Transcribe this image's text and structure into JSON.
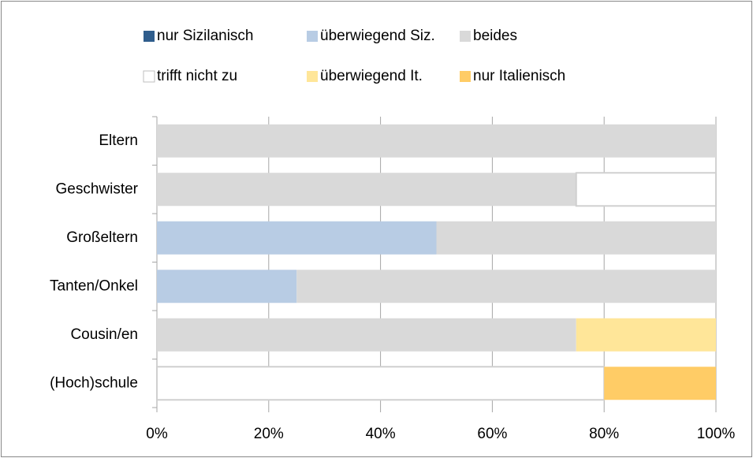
{
  "chart_data": {
    "type": "bar",
    "categories": [
      "Eltern",
      "Geschwister",
      "Großeltern",
      "Tanten/Onkel",
      "Cousin/en",
      "(Hoch)schule"
    ],
    "series": [
      {
        "name": "nur Sizilanisch",
        "color": "#2f5d8c",
        "values": [
          0,
          0,
          0,
          0,
          0,
          0
        ]
      },
      {
        "name": "überwiegend Siz.",
        "color": "#b8cce4",
        "values": [
          0,
          0,
          50,
          25,
          0,
          0
        ]
      },
      {
        "name": "beides",
        "color": "#d9d9d9",
        "values": [
          100,
          75,
          50,
          75,
          75,
          0
        ]
      },
      {
        "name": "trifft nicht zu",
        "color": "#ffffff",
        "values": [
          0,
          25,
          0,
          0,
          0,
          80
        ]
      },
      {
        "name": "überwiegend It.",
        "color": "#ffe699",
        "values": [
          0,
          0,
          0,
          0,
          25,
          0
        ]
      },
      {
        "name": "nur Italienisch",
        "color": "#ffcc66",
        "values": [
          0,
          0,
          0,
          0,
          0,
          20
        ]
      }
    ],
    "xlim": [
      0,
      100
    ],
    "xticks": [
      {
        "value": 0,
        "label": "0%"
      },
      {
        "value": 20,
        "label": "20%"
      },
      {
        "value": 40,
        "label": "40%"
      },
      {
        "value": 60,
        "label": "60%"
      },
      {
        "value": 80,
        "label": "80%"
      },
      {
        "value": 100,
        "label": "100%"
      }
    ],
    "grid": true
  }
}
